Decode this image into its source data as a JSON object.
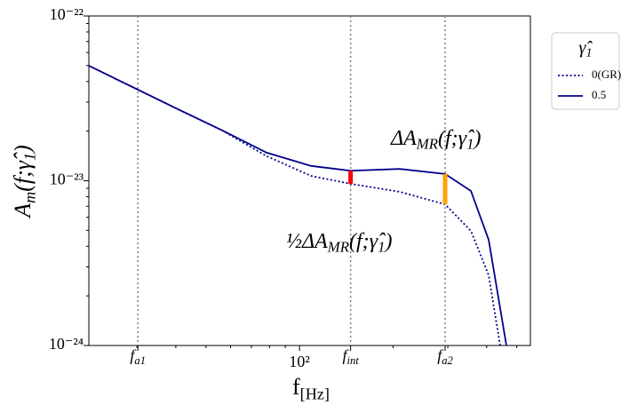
{
  "chart_data": {
    "type": "line",
    "log_x": true,
    "log_y": true,
    "xlabel": [
      "f",
      "[Hz]"
    ],
    "ylabel": [
      "A",
      "m",
      "(f;γ̂",
      "1",
      ")"
    ],
    "xlim": [
      21,
      553
    ],
    "ylim": [
      1e-24,
      1e-22
    ],
    "xticks": [
      {
        "value": 100,
        "label": "10²"
      }
    ],
    "xminorticks": [
      30,
      40,
      50,
      60,
      70,
      80,
      90,
      200,
      300,
      400,
      500
    ],
    "yticks": [
      {
        "value": 1e-24,
        "label": "10⁻²⁴"
      },
      {
        "value": 1e-23,
        "label": "10⁻²³"
      },
      {
        "value": 1e-22,
        "label": "10⁻²²"
      }
    ],
    "yminorticks": [
      2e-24,
      3e-24,
      4e-24,
      5e-24,
      6e-24,
      7e-24,
      8e-24,
      9e-24,
      2e-23,
      3e-23,
      4e-23,
      5e-23,
      6e-23,
      7e-23,
      8e-23,
      9e-23
    ],
    "vlines": [
      {
        "x": 30.2,
        "label": [
          "f",
          "a1"
        ]
      },
      {
        "x": 146,
        "label": [
          "f",
          "int"
        ]
      },
      {
        "x": 294,
        "label": [
          "f",
          "a2"
        ]
      }
    ],
    "series": [
      {
        "name": "0(GR)",
        "color": "#00008b",
        "style": "dotted",
        "x": [
          21,
          30.2,
          40.6,
          56.4,
          78.4,
          109,
          146,
          210,
          294,
          356,
          406,
          442
        ],
        "values": [
          4.99e-23,
          3.57e-23,
          2.72e-23,
          2.02e-23,
          1.41e-23,
          1.07e-23,
          9.58e-24,
          8.57e-24,
          7.19e-24,
          4.96e-24,
          2.67e-24,
          1e-24
        ]
      },
      {
        "name": "0.5",
        "color": "#00008b",
        "style": "solid",
        "x": [
          21,
          30.2,
          40.6,
          56.4,
          78.4,
          109,
          146,
          210,
          294,
          356,
          406,
          463
        ],
        "values": [
          4.99e-23,
          3.57e-23,
          2.72e-23,
          2.02e-23,
          1.48e-23,
          1.23e-23,
          1.15e-23,
          1.18e-23,
          1.1e-23,
          8.67e-24,
          4.38e-24,
          1e-24
        ]
      }
    ],
    "intervals": [
      {
        "x": 146,
        "low": 9.58e-24,
        "high": 1.15e-23,
        "color": "#ff0000"
      },
      {
        "x": 294,
        "low": 7.19e-24,
        "high": 1.1e-23,
        "color": "#ffa500"
      }
    ],
    "annotations": [
      {
        "text": [
          "ΔA",
          "MR",
          "(f;γ̂",
          "1",
          ")"
        ],
        "color": "#ffa500"
      },
      {
        "text": [
          "½ΔA",
          "MR",
          "(f;γ̂",
          "1",
          ")"
        ],
        "color": "#ff0000"
      }
    ],
    "legend": {
      "title": [
        "γ̂",
        "1"
      ],
      "position": "outside right"
    }
  }
}
